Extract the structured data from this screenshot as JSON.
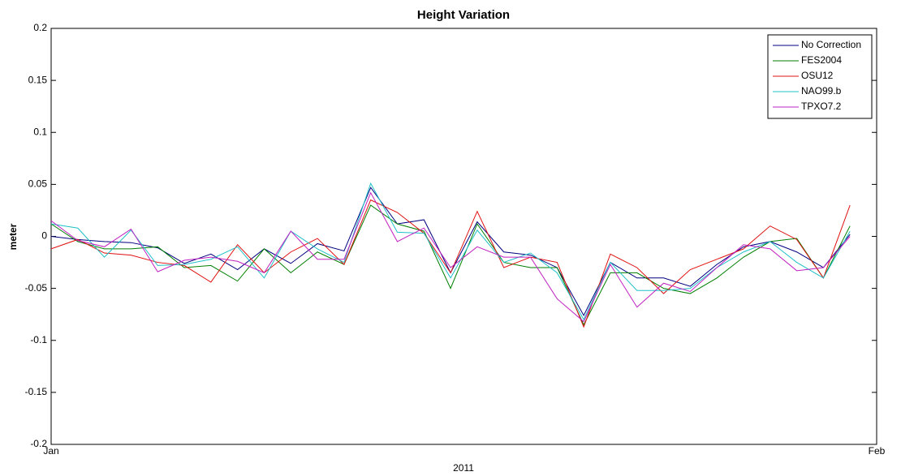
{
  "chart_data": {
    "type": "line",
    "title": "Height Variation",
    "ylabel": "meter",
    "xlabel": "2011",
    "x": [
      0,
      1,
      2,
      3,
      4,
      5,
      6,
      7,
      8,
      9,
      10,
      11,
      12,
      13,
      14,
      15,
      16,
      17,
      18,
      19,
      20,
      21,
      22,
      23,
      24,
      25,
      26,
      27,
      28,
      29,
      30
    ],
    "xlim": [
      0,
      31
    ],
    "xticks": [
      {
        "value": 0,
        "label": "Jan"
      },
      {
        "value": 31,
        "label": "Feb"
      }
    ],
    "ylim": [
      -0.2,
      0.2
    ],
    "yticks": [
      -0.2,
      -0.15,
      -0.1,
      -0.05,
      0,
      0.05,
      0.1,
      0.15,
      0.2
    ],
    "grid": false,
    "legend": "upper right",
    "series": [
      {
        "name": "No Correction",
        "color": "#00007f",
        "values": [
          0,
          -0.003,
          -0.005,
          -0.006,
          -0.011,
          -0.026,
          -0.017,
          -0.032,
          -0.012,
          -0.026,
          -0.007,
          -0.014,
          0.047,
          0.012,
          0.016,
          -0.035,
          0.014,
          -0.015,
          -0.018,
          -0.03,
          -0.076,
          -0.025,
          -0.04,
          -0.04,
          -0.048,
          -0.027,
          -0.01,
          -0.005,
          -0.015,
          -0.03,
          0.002
        ]
      },
      {
        "name": "FES2004",
        "color": "#007f00",
        "values": [
          0.012,
          -0.005,
          -0.012,
          -0.012,
          -0.01,
          -0.03,
          -0.028,
          -0.043,
          -0.012,
          -0.035,
          -0.015,
          -0.027,
          0.03,
          0.012,
          0.005,
          -0.05,
          0.012,
          -0.025,
          -0.03,
          -0.03,
          -0.085,
          -0.035,
          -0.035,
          -0.05,
          -0.055,
          -0.04,
          -0.02,
          -0.005,
          -0.002,
          -0.04,
          0.01
        ]
      },
      {
        "name": "OSU12",
        "color": "#e01010",
        "values": [
          -0.012,
          -0.003,
          -0.016,
          -0.018,
          -0.025,
          -0.028,
          -0.044,
          -0.008,
          -0.035,
          -0.015,
          -0.002,
          -0.027,
          0.035,
          0.023,
          0.003,
          -0.035,
          0.024,
          -0.03,
          -0.02,
          -0.025,
          -0.087,
          -0.017,
          -0.03,
          -0.055,
          -0.032,
          -0.022,
          -0.012,
          0.01,
          -0.003,
          -0.04,
          0.03
        ]
      },
      {
        "name": "NAO99.b",
        "color": "#20c0c8",
        "values": [
          0.012,
          0.008,
          -0.02,
          0.006,
          -0.028,
          -0.027,
          -0.022,
          -0.01,
          -0.04,
          0.005,
          -0.012,
          -0.025,
          0.051,
          0.004,
          0.003,
          -0.04,
          0.006,
          -0.025,
          -0.016,
          -0.035,
          -0.08,
          -0.025,
          -0.052,
          -0.052,
          -0.05,
          -0.03,
          -0.015,
          -0.005,
          -0.025,
          -0.04,
          0.005
        ]
      },
      {
        "name": "TPXO7.2",
        "color": "#c020c0",
        "values": [
          0.015,
          -0.004,
          -0.01,
          0.007,
          -0.034,
          -0.023,
          -0.02,
          -0.024,
          -0.035,
          0.005,
          -0.022,
          -0.022,
          0.042,
          -0.005,
          0.008,
          -0.03,
          -0.01,
          -0.02,
          -0.02,
          -0.06,
          -0.082,
          -0.027,
          -0.068,
          -0.045,
          -0.053,
          -0.03,
          -0.008,
          -0.012,
          -0.033,
          -0.03,
          0
        ]
      }
    ]
  }
}
